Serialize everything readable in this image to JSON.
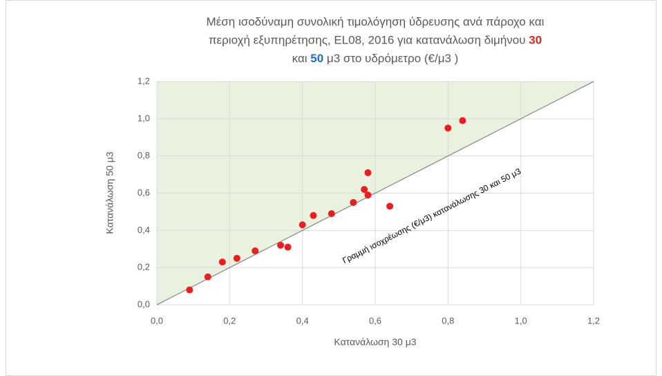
{
  "chart_data": {
    "type": "scatter",
    "title_lines": [
      [
        {
          "text": "Μέση ισοδύναμη συνολική τιμολόγηση ύδρευσης ανά πάροχο και"
        }
      ],
      [
        {
          "text": "περιοχή εξυπηρέτησης, EL08, 2016 για κατανάλωση διμήνου "
        },
        {
          "text": "30",
          "color": "#e8231c"
        }
      ],
      [
        {
          "text": "και "
        },
        {
          "text": "50",
          "color": "#1f6fbf"
        },
        {
          "text": "  μ3 στο υδρόμετρο (€/μ3 )"
        }
      ]
    ],
    "x_label": "Κατανάλωση  30 μ3",
    "y_label": "Κατανάλωση  50 μ3",
    "annotation": "Γραμμή ισοχρέωσης (€/μ3) κατανάλωσης 30 και 50 μ3",
    "color": "#ee1c1c",
    "area_color": "#e9f2df",
    "x": [
      0.09,
      0.14,
      0.18,
      0.22,
      0.27,
      0.34,
      0.36,
      0.4,
      0.43,
      0.48,
      0.54,
      0.57,
      0.58,
      0.58,
      0.64,
      0.8,
      0.84
    ],
    "values": [
      0.08,
      0.15,
      0.23,
      0.25,
      0.29,
      0.32,
      0.31,
      0.43,
      0.48,
      0.49,
      0.55,
      0.62,
      0.59,
      0.71,
      0.53,
      0.95,
      0.99
    ],
    "xlim": [
      0,
      1.2
    ],
    "ylim": [
      0,
      1.2
    ],
    "xticks": [
      {
        "value": 0,
        "label": "0,0"
      },
      {
        "value": 0.2,
        "label": "0,2"
      },
      {
        "value": 0.4,
        "label": "0,4"
      },
      {
        "value": 0.6,
        "label": "0,6"
      },
      {
        "value": 0.8,
        "label": "0,8"
      },
      {
        "value": 1.0,
        "label": "1,0"
      },
      {
        "value": 1.2,
        "label": "1,2"
      }
    ],
    "yticks": [
      {
        "value": 0,
        "label": "0,0"
      },
      {
        "value": 0.2,
        "label": "0,2"
      },
      {
        "value": 0.4,
        "label": "0,4"
      },
      {
        "value": 0.6,
        "label": "0,6"
      },
      {
        "value": 0.8,
        "label": "0,8"
      },
      {
        "value": 1.0,
        "label": "1,0"
      },
      {
        "value": 1.2,
        "label": "1,2"
      }
    ],
    "grid": true
  }
}
